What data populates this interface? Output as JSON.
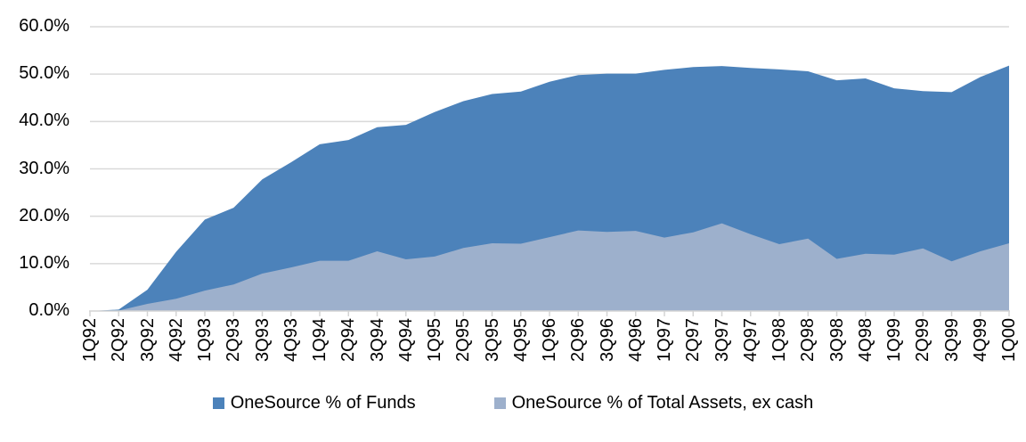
{
  "chart_data": {
    "type": "area",
    "title": "",
    "stacking": "overlap",
    "categories": [
      "1Q92",
      "2Q92",
      "3Q92",
      "4Q92",
      "1Q93",
      "2Q93",
      "3Q93",
      "4Q93",
      "1Q94",
      "2Q94",
      "3Q94",
      "4Q94",
      "1Q95",
      "2Q95",
      "3Q95",
      "4Q95",
      "1Q96",
      "2Q96",
      "3Q96",
      "4Q96",
      "1Q97",
      "2Q97",
      "3Q97",
      "4Q97",
      "1Q98",
      "2Q98",
      "3Q98",
      "4Q98",
      "1Q99",
      "2Q99",
      "3Q99",
      "4Q99",
      "1Q00"
    ],
    "series": [
      {
        "name": "OneSource % of Funds",
        "color": "#4C82BA",
        "values": [
          0,
          0.3,
          4.5,
          12.5,
          19.3,
          21.8,
          27.8,
          31.4,
          35.2,
          36.1,
          38.8,
          39.3,
          42.0,
          44.3,
          45.8,
          46.3,
          48.4,
          49.8,
          50.1,
          50.1,
          50.9,
          51.5,
          51.7,
          51.3,
          51.0,
          50.6,
          48.7,
          49.1,
          47.0,
          46.4,
          46.2,
          49.4,
          51.8
        ]
      },
      {
        "name": "OneSource % of Total Assets, ex cash",
        "color": "#9DB0CC",
        "values": [
          0,
          0.1,
          1.5,
          2.6,
          4.3,
          5.6,
          7.9,
          9.2,
          10.6,
          10.6,
          12.6,
          10.9,
          11.5,
          13.3,
          14.3,
          14.2,
          15.6,
          17.0,
          16.7,
          16.9,
          15.5,
          16.6,
          18.5,
          16.2,
          14.1,
          15.3,
          11.0,
          12.1,
          11.9,
          13.2,
          10.5,
          12.6,
          14.3
        ]
      }
    ],
    "xlabel": "",
    "ylabel": "",
    "ylim": [
      0,
      60
    ],
    "ytick_step": 10,
    "ytick_labels": [
      "0.0%",
      "10.0%",
      "20.0%",
      "30.0%",
      "40.0%",
      "50.0%",
      "60.0%"
    ],
    "grid": "horizontal",
    "gridline_color": "#D9D9D9",
    "axis_color": "#D4D4D4",
    "background": "#FFFFFF",
    "legend_position": "bottom",
    "legend": [
      "OneSource % of Funds",
      "OneSource % of Total Assets, ex cash"
    ]
  }
}
